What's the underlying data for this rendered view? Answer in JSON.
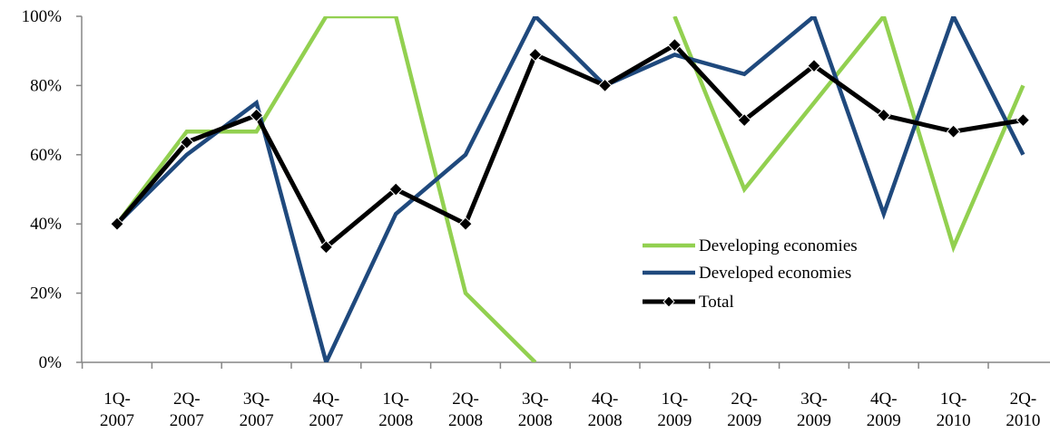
{
  "chart_data": {
    "type": "line",
    "categories": [
      "1Q-2007",
      "2Q-2007",
      "3Q-2007",
      "4Q-2007",
      "1Q-2008",
      "2Q-2008",
      "3Q-2008",
      "4Q-2008",
      "1Q-2009",
      "2Q-2009",
      "3Q-2009",
      "4Q-2009",
      "1Q-2010",
      "2Q-2010"
    ],
    "category_lines": [
      [
        "1Q-",
        "2007"
      ],
      [
        "2Q-",
        "2007"
      ],
      [
        "3Q-",
        "2007"
      ],
      [
        "4Q-",
        "2007"
      ],
      [
        "1Q-",
        "2008"
      ],
      [
        "2Q-",
        "2008"
      ],
      [
        "3Q-",
        "2008"
      ],
      [
        "4Q-",
        "2008"
      ],
      [
        "1Q-",
        "2009"
      ],
      [
        "2Q-",
        "2009"
      ],
      [
        "3Q-",
        "2009"
      ],
      [
        "4Q-",
        "2009"
      ],
      [
        "1Q-",
        "2010"
      ],
      [
        "2Q-",
        "2010"
      ]
    ],
    "ylim": [
      0,
      100
    ],
    "yticks": [
      0,
      20,
      40,
      60,
      80,
      100
    ],
    "ytick_labels": [
      "0%",
      "20%",
      "40%",
      "60%",
      "80%",
      "100%"
    ],
    "grid": false,
    "legend_position": "right-middle",
    "series": [
      {
        "name": "Developing economies",
        "color": "#92D050",
        "marker": "none",
        "values": [
          40,
          66.7,
          66.7,
          100,
          100,
          20,
          0,
          null,
          100,
          50,
          75,
          100,
          33.3,
          80
        ]
      },
      {
        "name": "Developed economies",
        "color": "#1F497D",
        "marker": "none",
        "values": [
          40,
          60,
          75,
          0,
          42.9,
          60,
          100,
          80,
          88.9,
          83.3,
          100,
          42.9,
          100,
          60
        ]
      },
      {
        "name": "Total",
        "color": "#000000",
        "marker": "diamond",
        "values": [
          40,
          63.6,
          71.4,
          33.3,
          50,
          40,
          88.9,
          80,
          91.7,
          70,
          85.7,
          71.4,
          66.7,
          70
        ]
      }
    ]
  }
}
